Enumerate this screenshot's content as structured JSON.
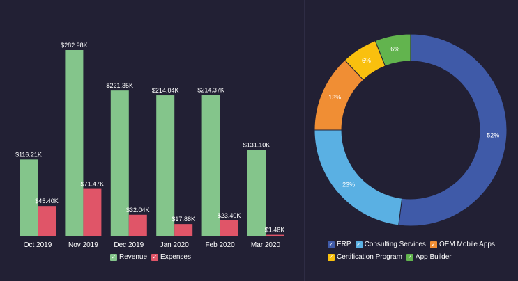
{
  "chart_data": [
    {
      "type": "bar",
      "title": "",
      "xlabel": "",
      "ylabel": "",
      "categories": [
        "Oct 2019",
        "Nov 2019",
        "Dec 2019",
        "Jan 2020",
        "Feb 2020",
        "Mar 2020"
      ],
      "series": [
        {
          "name": "Revenue",
          "color": "#84c58b",
          "values": [
            116.21,
            282.98,
            221.35,
            214.04,
            214.37,
            131.1
          ],
          "labels": [
            "$116.21K",
            "$282.98K",
            "$221.35K",
            "$214.04K",
            "$214.37K",
            "$131.10K"
          ]
        },
        {
          "name": "Expenses",
          "color": "#e05568",
          "values": [
            45.4,
            71.47,
            32.04,
            17.88,
            23.4,
            1.48
          ],
          "labels": [
            "$45.40K",
            "$71.47K",
            "$32.04K",
            "$17.88K",
            "$23.40K",
            "$1.48K"
          ]
        }
      ],
      "ylim": [
        0,
        300
      ],
      "grid": false,
      "legend": "bottom"
    },
    {
      "type": "pie",
      "title": "",
      "donut": true,
      "slices": [
        {
          "label": "ERP",
          "value": 52,
          "text": "52%",
          "color": "#3f5aa8"
        },
        {
          "label": "Consulting Services",
          "value": 23,
          "text": "23%",
          "color": "#5ab0e3"
        },
        {
          "label": "OEM Mobile Apps",
          "value": 13,
          "text": "13%",
          "color": "#f08e34"
        },
        {
          "label": "Certification Program",
          "value": 6,
          "text": "6%",
          "color": "#f9c00e"
        },
        {
          "label": "App Builder",
          "value": 6,
          "text": "6%",
          "color": "#62b44e"
        }
      ],
      "legend": "bottom"
    }
  ]
}
